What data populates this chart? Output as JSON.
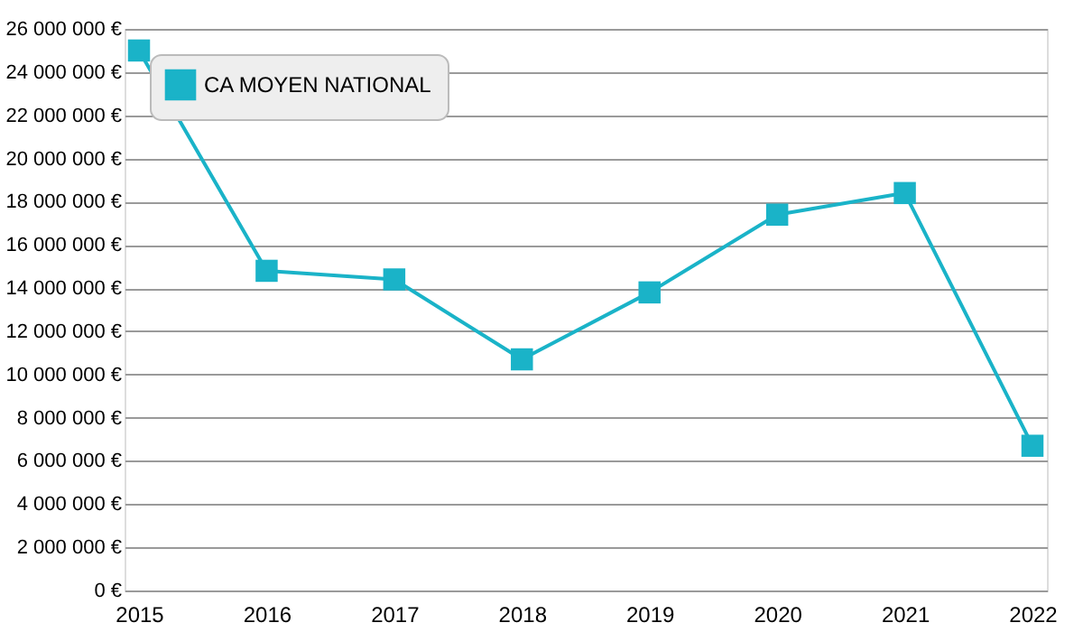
{
  "chart_data": {
    "type": "line",
    "categories": [
      "2015",
      "2016",
      "2017",
      "2018",
      "2019",
      "2020",
      "2021",
      "2022"
    ],
    "series": [
      {
        "name": "CA MOYEN NATIONAL",
        "color": "#1ab3c8",
        "values": [
          25000000,
          14800000,
          14400000,
          10700000,
          13800000,
          17400000,
          18400000,
          6700000
        ]
      }
    ],
    "ylim": [
      0,
      26000000
    ],
    "yticks": [
      {
        "value": 0,
        "label": "0 €"
      },
      {
        "value": 2000000,
        "label": "2 000 000 €"
      },
      {
        "value": 4000000,
        "label": "4 000 000 €"
      },
      {
        "value": 6000000,
        "label": "6 000 000 €"
      },
      {
        "value": 8000000,
        "label": "8 000 000 €"
      },
      {
        "value": 10000000,
        "label": "10 000 000 €"
      },
      {
        "value": 12000000,
        "label": "12 000 000 €"
      },
      {
        "value": 14000000,
        "label": "14 000 000 €"
      },
      {
        "value": 16000000,
        "label": "16 000 000 €"
      },
      {
        "value": 18000000,
        "label": "18 000 000 €"
      },
      {
        "value": 20000000,
        "label": "20 000 000 €"
      },
      {
        "value": 22000000,
        "label": "22 000 000 €"
      },
      {
        "value": 24000000,
        "label": "24 000 000 €"
      },
      {
        "value": 26000000,
        "label": "26 000 000 €"
      }
    ],
    "grid": "y",
    "legend": "top left",
    "marker": "square",
    "line_style": "solid"
  }
}
